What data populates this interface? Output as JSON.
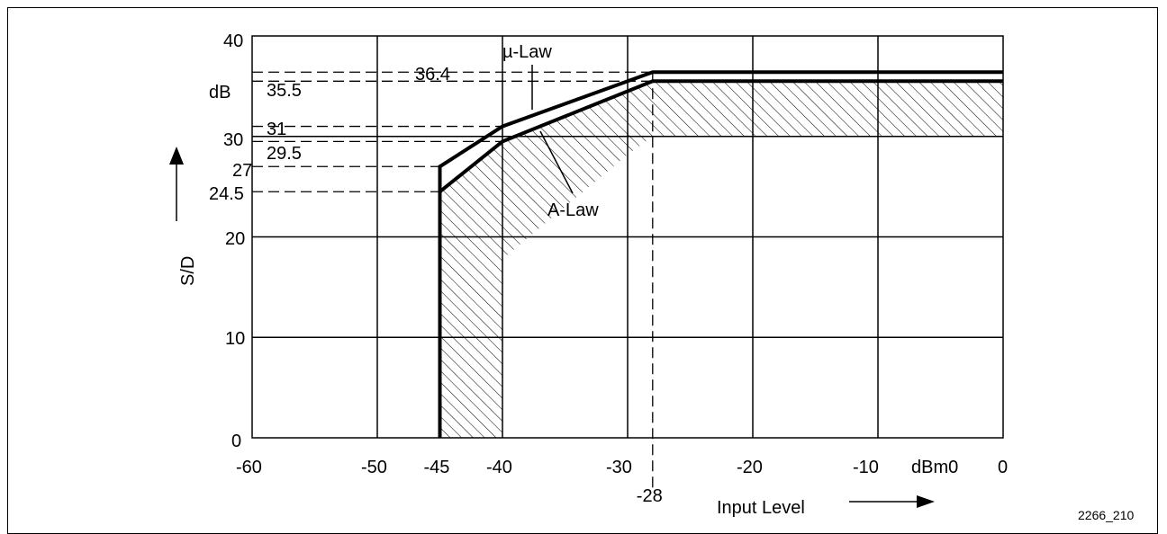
{
  "chart_data": {
    "type": "line",
    "xlabel": "Input Level",
    "x_unit": "dBm0",
    "ylabel": "S/D",
    "y_unit": "dB",
    "xlim": [
      -60,
      0
    ],
    "ylim": [
      0,
      40
    ],
    "x_ticks": [
      -60,
      -50,
      -45,
      -40,
      -30,
      -28,
      -20,
      -10,
      0
    ],
    "x_tick_labels": [
      "-60",
      "-50",
      "-45",
      "-40",
      "-30",
      "-28",
      "-20",
      "-10",
      "0"
    ],
    "y_ticks": [
      0,
      10,
      20,
      24.5,
      27,
      29.5,
      30,
      31,
      35.5,
      36.4,
      40
    ],
    "y_tick_labels": [
      "0",
      "10",
      "20",
      "24.5",
      "27",
      "29.5",
      "30",
      "31",
      "35.5",
      "36.4",
      "40"
    ],
    "grid": true,
    "series": [
      {
        "name": "µ-Law",
        "x": [
          -45,
          -45,
          -40,
          -28,
          0
        ],
        "y": [
          0,
          27,
          31,
          36.4,
          36.4
        ]
      },
      {
        "name": "A-Law",
        "x": [
          -45,
          -45,
          -40,
          -28,
          0
        ],
        "y": [
          0,
          24.5,
          29.5,
          35.5,
          35.5
        ]
      }
    ],
    "limit_line_y": 30,
    "figure_id": "2266_210",
    "colors": {
      "line": "#000000",
      "background": "#ffffff"
    }
  }
}
